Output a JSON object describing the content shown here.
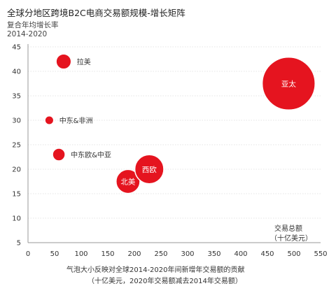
{
  "header": {
    "title": "全球分地区跨境B2C电商交易额规模-增长矩阵",
    "y_label_line1": "复合年均增长率",
    "y_label_line2": "2014-2020"
  },
  "x_unit": {
    "line1": "交易总额",
    "line2": "（十亿美元）"
  },
  "footnote": {
    "line1": "气泡大小反映对全球2014-2020年间新增年交易额的贡献",
    "line2": "（十亿美元，2020年交易额减去2014年交易额）"
  },
  "colors": {
    "bubble": "#e5141f",
    "axis": "#999999",
    "grid": "#cccccc",
    "text": "#333333"
  },
  "chart_data": {
    "type": "scatter",
    "title": "全球分地区跨境B2C电商交易额规模-增长矩阵",
    "xlabel": "交易总额（十亿美元）",
    "ylabel": "复合年均增长率 2014-2020",
    "xlim": [
      0,
      550
    ],
    "ylim": [
      5,
      45
    ],
    "x_ticks": [
      0,
      50,
      100,
      150,
      200,
      250,
      300,
      350,
      400,
      450,
      500,
      550
    ],
    "y_ticks": [
      5,
      10,
      15,
      20,
      25,
      30,
      35,
      40,
      45
    ],
    "size_meaning": "气泡大小反映对全球2014-2020年间新增年交易额的贡献",
    "points": [
      {
        "label": "拉美",
        "x": 67,
        "y": 42,
        "size": 1.2,
        "label_position": "right"
      },
      {
        "label": "中东&非洲",
        "x": 40,
        "y": 30,
        "size": 0.7,
        "label_position": "right"
      },
      {
        "label": "中东欧&中亚",
        "x": 58,
        "y": 23,
        "size": 1.0,
        "label_position": "right"
      },
      {
        "label": "北美",
        "x": 188,
        "y": 17.5,
        "size": 1.9,
        "label_position": "inside"
      },
      {
        "label": "西欧",
        "x": 228,
        "y": 20,
        "size": 2.3,
        "label_position": "inside"
      },
      {
        "label": "亚太",
        "x": 490,
        "y": 37.5,
        "size": 4.2,
        "label_position": "inside"
      }
    ]
  }
}
